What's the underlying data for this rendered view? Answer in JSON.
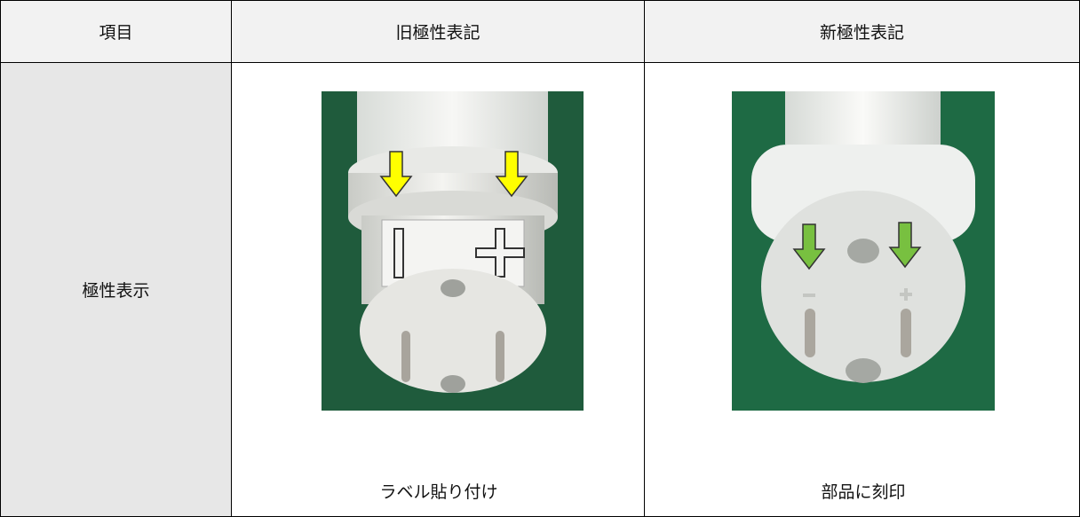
{
  "table": {
    "header": [
      "項目",
      "旧極性表記",
      "新極性表記"
    ],
    "rows": [
      [
        "極性表示",
        "ラベル貼り付け",
        "部品に刻印"
      ]
    ]
  }
}
